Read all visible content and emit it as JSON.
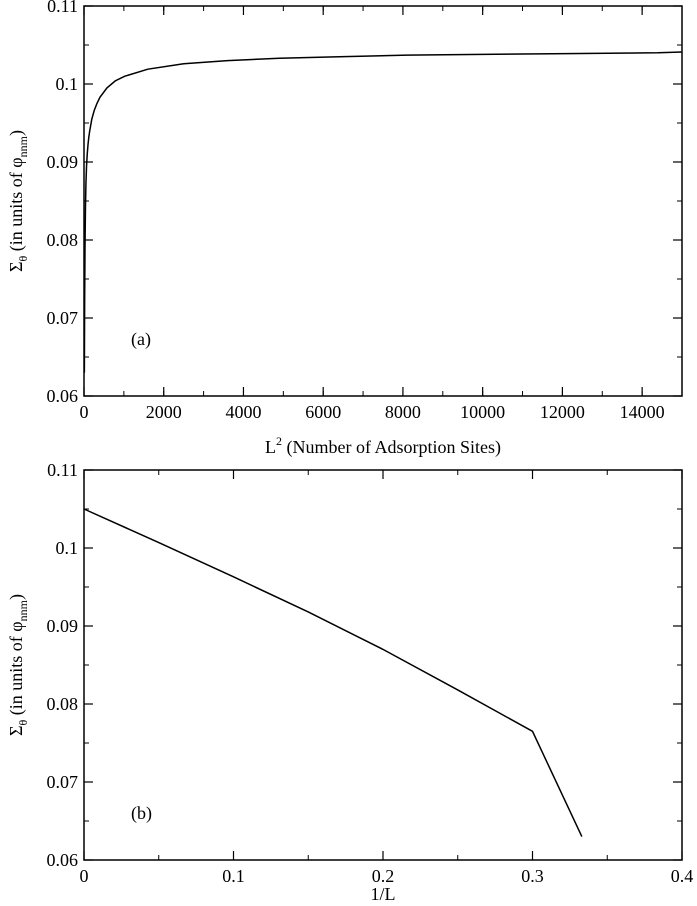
{
  "chart_data": [
    {
      "type": "line",
      "panel_label": "(a)",
      "xlabel": {
        "main": "L",
        "sup": "2",
        "rest": " (Number of Adsorption Sites)"
      },
      "ylabel": {
        "main": "Σ",
        "sub1": "θ",
        "mid": " (in units of φ",
        "sub2": "nnm",
        "end": ")"
      },
      "xlim": [
        0,
        15000
      ],
      "ylim": [
        0.06,
        0.11
      ],
      "xticks": [
        "0",
        "2000",
        "4000",
        "6000",
        "8000",
        "10000",
        "12000",
        "14000"
      ],
      "yticks": [
        "0.06",
        "0.07",
        "0.08",
        "0.09",
        "0.1",
        "0.11"
      ],
      "series": [
        {
          "color": "#000000",
          "x": [
            9,
            16,
            25,
            36,
            49,
            64,
            81,
            100,
            121,
            144,
            196,
            256,
            324,
            400,
            576,
            784,
            1024,
            1600,
            2500,
            3600,
            4900,
            6400,
            8100,
            10000,
            12100,
            14400,
            15000
          ],
          "y": [
            0.063,
            0.072,
            0.079,
            0.084,
            0.0873,
            0.0895,
            0.091,
            0.0922,
            0.0932,
            0.094,
            0.0955,
            0.0966,
            0.0975,
            0.0983,
            0.0995,
            0.1004,
            0.101,
            0.1019,
            0.1026,
            0.103,
            0.1033,
            0.1035,
            0.1037,
            0.1038,
            0.1039,
            0.104,
            0.1041
          ]
        }
      ]
    },
    {
      "type": "line",
      "panel_label": "(b)",
      "xlabel": {
        "main": "1/L",
        "sup": "",
        "rest": ""
      },
      "ylabel": {
        "main": "Σ",
        "sub1": "θ",
        "mid": " (in units of φ",
        "sub2": "nnm",
        "end": ")"
      },
      "xlim": [
        0,
        0.4
      ],
      "ylim": [
        0.06,
        0.11
      ],
      "xticks": [
        "0",
        "0.1",
        "0.2",
        "0.3",
        "0.4"
      ],
      "yticks": [
        "0.06",
        "0.07",
        "0.08",
        "0.09",
        "0.1",
        "0.11"
      ],
      "series": [
        {
          "color": "#000000",
          "x": [
            0.0,
            0.05,
            0.1,
            0.15,
            0.2,
            0.25,
            0.3,
            0.333
          ],
          "y": [
            0.105,
            0.1007,
            0.0963,
            0.0918,
            0.087,
            0.0818,
            0.0765,
            0.063
          ]
        }
      ]
    }
  ]
}
